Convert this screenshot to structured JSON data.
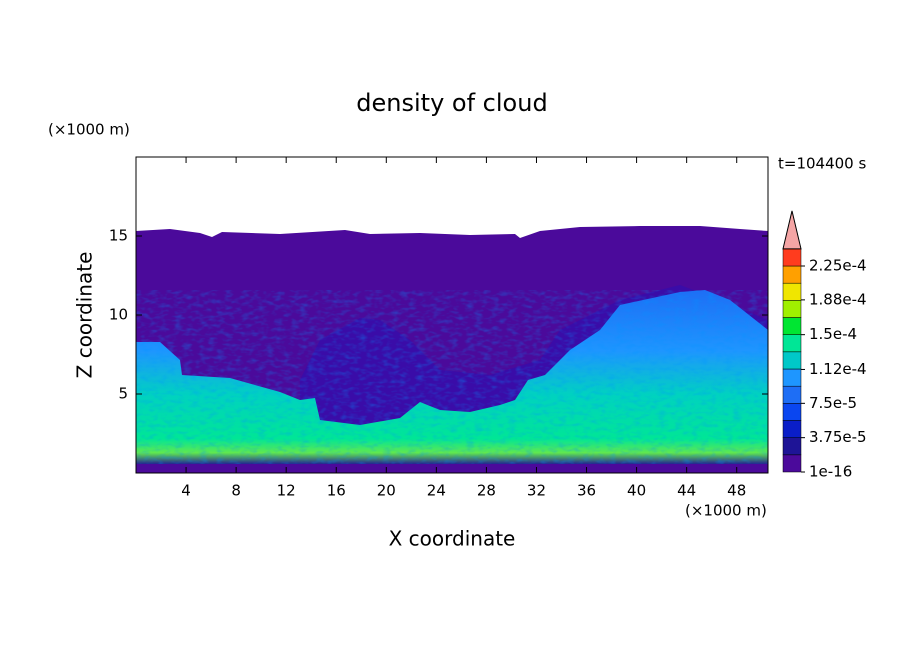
{
  "chart_data": {
    "type": "contour",
    "title": "density of cloud",
    "x_label": "X coordinate",
    "y_label": "Z coordinate",
    "x_unit": "(×1000 m)",
    "y_unit": "(×1000 m)",
    "time_label": "t=104400 s",
    "xlim": [
      0,
      50.5
    ],
    "ylim": [
      0,
      20
    ],
    "xticks": [
      4,
      8,
      12,
      16,
      20,
      24,
      28,
      32,
      36,
      40,
      44,
      48
    ],
    "yticks": [
      5,
      10,
      15
    ],
    "colorbar": {
      "colors": [
        "#4b0a9b",
        "#1e1496",
        "#0a1ec8",
        "#0a46f0",
        "#1e6ef5",
        "#1e96ff",
        "#00c8c8",
        "#00e696",
        "#00e632",
        "#a0f000",
        "#f0e600",
        "#ffa000",
        "#ff3c1e"
      ],
      "extend_color": "#f5a5a5",
      "ticks": [
        {
          "value": 1e-16,
          "label": "1e-16"
        },
        {
          "value": 3.75e-05,
          "label": "3.75e-5"
        },
        {
          "value": 7.5e-05,
          "label": "7.5e-5"
        },
        {
          "value": 0.000112,
          "label": "1.12e-4"
        },
        {
          "value": 0.00015,
          "label": "1.5e-4"
        },
        {
          "value": 0.000188,
          "label": "1.88e-4"
        },
        {
          "value": 0.000225,
          "label": "2.25e-4"
        }
      ]
    }
  }
}
